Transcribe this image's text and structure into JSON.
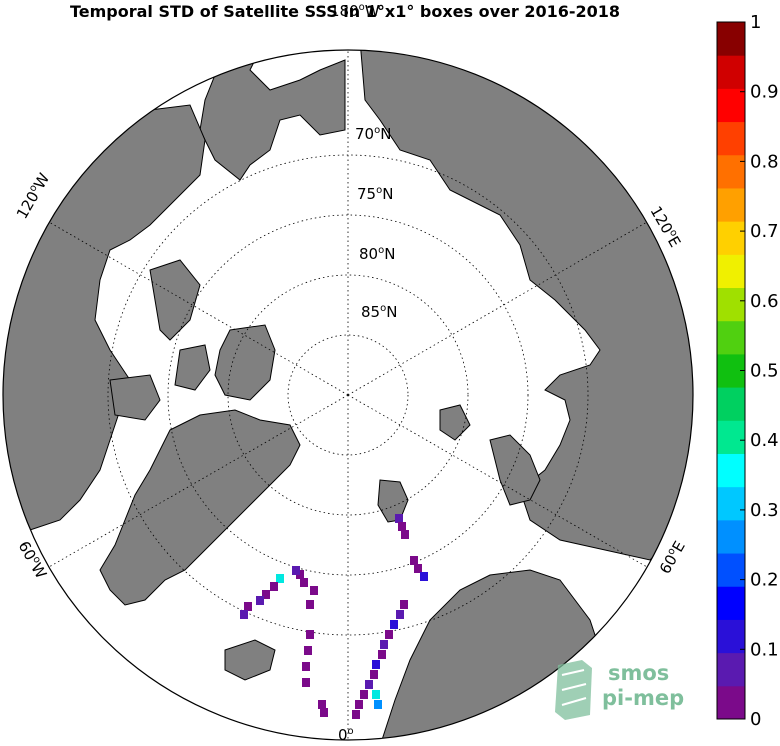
{
  "title": "Temporal STD of Satellite SSS in 1°x1° boxes over 2016-2018",
  "map": {
    "projection": "north-polar-stereographic",
    "land_color": "#808080",
    "ocean_color": "#ffffff",
    "longitude_labels": [
      {
        "lon": 0,
        "text": "0o"
      },
      {
        "lon": 60,
        "text": "60oE"
      },
      {
        "lon": 120,
        "text": "120oE"
      },
      {
        "lon": 180,
        "text": "180oW"
      },
      {
        "lon": -120,
        "text": "120oW"
      },
      {
        "lon": -60,
        "text": "60oW"
      }
    ],
    "latitude_labels": [
      {
        "lat": 70,
        "text": "70oN"
      },
      {
        "lat": 75,
        "text": "75oN"
      },
      {
        "lat": 80,
        "text": "80oN"
      },
      {
        "lat": 85,
        "text": "85oN"
      }
    ]
  },
  "colorbar": {
    "min": 0,
    "max": 1,
    "tick_labels": [
      "0",
      "0.1",
      "0.2",
      "0.3",
      "0.4",
      "0.5",
      "0.6",
      "0.7",
      "0.8",
      "0.9",
      "1"
    ],
    "colors": [
      "#7b0a8a",
      "#5a1ab0",
      "#2a10d8",
      "#0000ff",
      "#0050ff",
      "#0090ff",
      "#00c8ff",
      "#00ffff",
      "#00e890",
      "#00d060",
      "#10c010",
      "#50d010",
      "#a0e000",
      "#f0f000",
      "#ffd000",
      "#ffa000",
      "#ff7000",
      "#ff4000",
      "#ff0000",
      "#d00000",
      "#880000"
    ]
  },
  "logo": {
    "line1": "smos",
    "line2": "pi-mep"
  }
}
